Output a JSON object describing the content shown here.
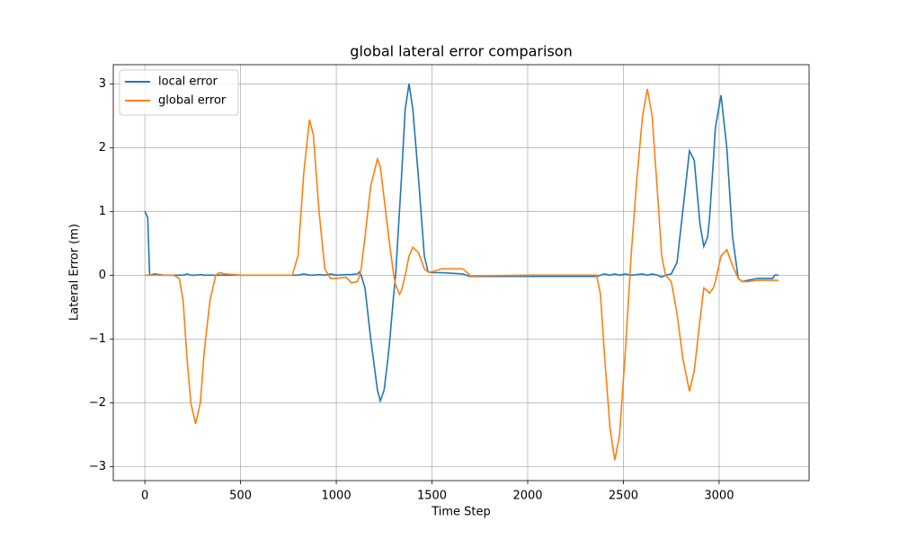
{
  "chart_data": {
    "type": "line",
    "title": "global lateral error comparison",
    "x_label": "Time Step",
    "y_label": "Lateral Error (m)",
    "x": [
      0,
      15,
      25,
      50,
      100,
      150,
      180,
      200,
      220,
      240,
      265,
      290,
      310,
      340,
      370,
      390,
      420,
      500,
      770,
      800,
      830,
      860,
      880,
      910,
      940,
      970,
      1000,
      1050,
      1080,
      1110,
      1120,
      1130,
      1150,
      1180,
      1215,
      1230,
      1250,
      1270,
      1280,
      1300,
      1310,
      1330,
      1340,
      1360,
      1380,
      1400,
      1430,
      1460,
      1480,
      1500,
      1550,
      1600,
      1660,
      1680,
      1700,
      2000,
      2360,
      2380,
      2400,
      2430,
      2455,
      2480,
      2510,
      2540,
      2570,
      2600,
      2625,
      2650,
      2680,
      2700,
      2720,
      2750,
      2780,
      2810,
      2845,
      2870,
      2900,
      2920,
      2940,
      2950,
      2970,
      2980,
      3010,
      3040,
      3070,
      3100,
      3120,
      3150,
      3200,
      3280,
      3290,
      3310
    ],
    "series": [
      {
        "name": "local error",
        "color": "#1f77b4",
        "values": [
          1.0,
          0.9,
          0.0,
          0.02,
          0.0,
          0,
          0,
          0,
          0.02,
          0,
          0,
          0.01,
          0,
          0,
          0,
          0,
          0,
          0,
          0,
          0,
          0.02,
          0,
          0,
          0.01,
          0,
          0.02,
          0,
          0.01,
          0.01,
          0.02,
          0.05,
          0.0,
          -0.2,
          -1.0,
          -1.8,
          -1.97,
          -1.8,
          -1.3,
          -1.0,
          -0.3,
          0.0,
          1.0,
          1.5,
          2.6,
          3.0,
          2.6,
          1.5,
          0.3,
          0.05,
          0.04,
          0.04,
          0.03,
          0.02,
          0.0,
          -0.02,
          -0.02,
          -0.02,
          0.0,
          0.02,
          0.0,
          0.02,
          0.0,
          0.02,
          0.0,
          0.01,
          0.02,
          0.0,
          0.02,
          0.0,
          -0.03,
          0.0,
          0.02,
          0.2,
          1.0,
          1.95,
          1.8,
          0.8,
          0.45,
          0.6,
          0.9,
          1.8,
          2.3,
          2.82,
          2.0,
          0.6,
          -0.05,
          -0.1,
          -0.08,
          -0.05,
          -0.05,
          0.0,
          0.0
        ]
      },
      {
        "name": "global error",
        "color": "#ff7f0e",
        "values": [
          0,
          0,
          0,
          0,
          0,
          0,
          -0.05,
          -0.4,
          -1.3,
          -2.0,
          -2.33,
          -2.0,
          -1.2,
          -0.4,
          0.0,
          0.04,
          0.02,
          0,
          0,
          0.3,
          1.6,
          2.44,
          2.2,
          1.0,
          0.1,
          -0.05,
          -0.05,
          -0.03,
          -0.12,
          -0.1,
          -0.02,
          0.1,
          0.6,
          1.4,
          1.82,
          1.7,
          1.2,
          0.7,
          0.45,
          0.0,
          -0.15,
          -0.3,
          -0.25,
          0.0,
          0.3,
          0.44,
          0.35,
          0.1,
          0.05,
          0.05,
          0.1,
          0.1,
          0.1,
          0.05,
          -0.01,
          0,
          0,
          -0.3,
          -1.2,
          -2.4,
          -2.9,
          -2.5,
          -1.2,
          0.3,
          1.5,
          2.5,
          2.92,
          2.5,
          1.2,
          0.3,
          0.0,
          -0.1,
          -0.6,
          -1.3,
          -1.82,
          -1.5,
          -0.7,
          -0.2,
          -0.25,
          -0.28,
          -0.2,
          -0.1,
          0.3,
          0.4,
          0.15,
          -0.05,
          -0.1,
          -0.1,
          -0.08,
          -0.08,
          -0.08,
          -0.08
        ]
      }
    ],
    "xlim": [
      -165,
      3470
    ],
    "ylim": [
      -3.22,
      3.3
    ],
    "xticks": [
      0,
      500,
      1000,
      1500,
      2000,
      2500,
      3000
    ],
    "yticks": [
      {
        "value": -3,
        "label": "−3"
      },
      {
        "value": -2,
        "label": "−2"
      },
      {
        "value": -1,
        "label": "−1"
      },
      0,
      1,
      2,
      3
    ],
    "grid": true,
    "legend": "upper left"
  }
}
